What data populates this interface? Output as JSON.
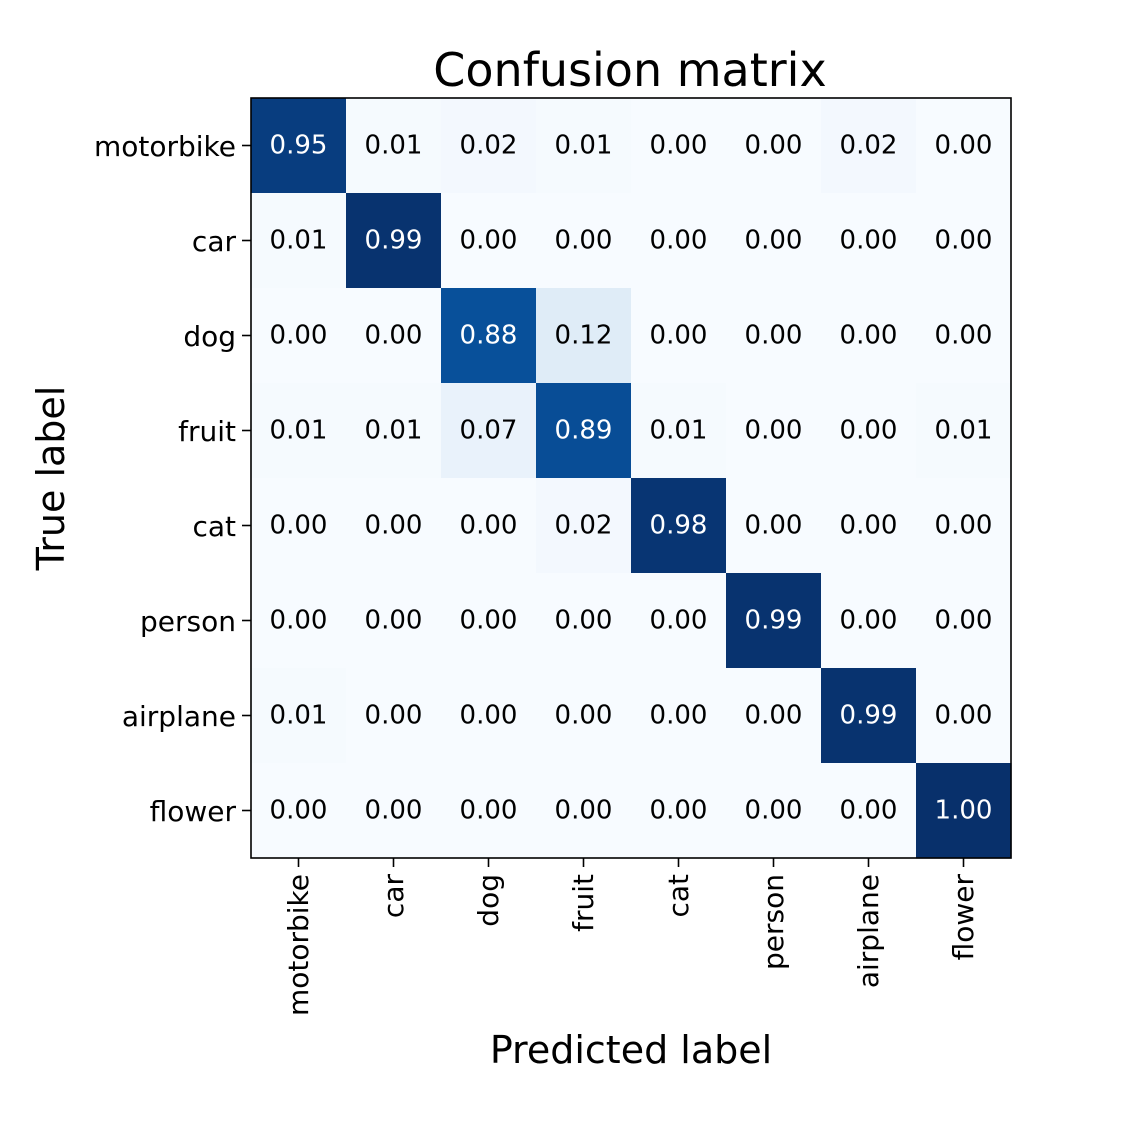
{
  "chart_data": {
    "type": "heatmap",
    "title": "Confusion matrix",
    "xlabel": "Predicted label",
    "ylabel": "True label",
    "x_categories": [
      "motorbike",
      "car",
      "dog",
      "fruit",
      "cat",
      "person",
      "airplane",
      "flower"
    ],
    "y_categories": [
      "motorbike",
      "car",
      "dog",
      "fruit",
      "cat",
      "person",
      "airplane",
      "flower"
    ],
    "values": [
      [
        0.95,
        0.01,
        0.02,
        0.01,
        0.0,
        0.0,
        0.02,
        0.0
      ],
      [
        0.01,
        0.99,
        0.0,
        0.0,
        0.0,
        0.0,
        0.0,
        0.0
      ],
      [
        0.0,
        0.0,
        0.88,
        0.12,
        0.0,
        0.0,
        0.0,
        0.0
      ],
      [
        0.01,
        0.01,
        0.07,
        0.89,
        0.01,
        0.0,
        0.0,
        0.01
      ],
      [
        0.0,
        0.0,
        0.0,
        0.02,
        0.98,
        0.0,
        0.0,
        0.0
      ],
      [
        0.0,
        0.0,
        0.0,
        0.0,
        0.0,
        0.99,
        0.0,
        0.0
      ],
      [
        0.01,
        0.0,
        0.0,
        0.0,
        0.0,
        0.0,
        0.99,
        0.0
      ],
      [
        0.0,
        0.0,
        0.0,
        0.0,
        0.0,
        0.0,
        0.0,
        1.0
      ]
    ],
    "value_format_decimals": 2,
    "colormap": "Blues",
    "color_low": "#f7fbff",
    "color_high": "#08306b",
    "text_color_dark": "#000000",
    "text_color_light": "#ffffff",
    "grid": false
  }
}
